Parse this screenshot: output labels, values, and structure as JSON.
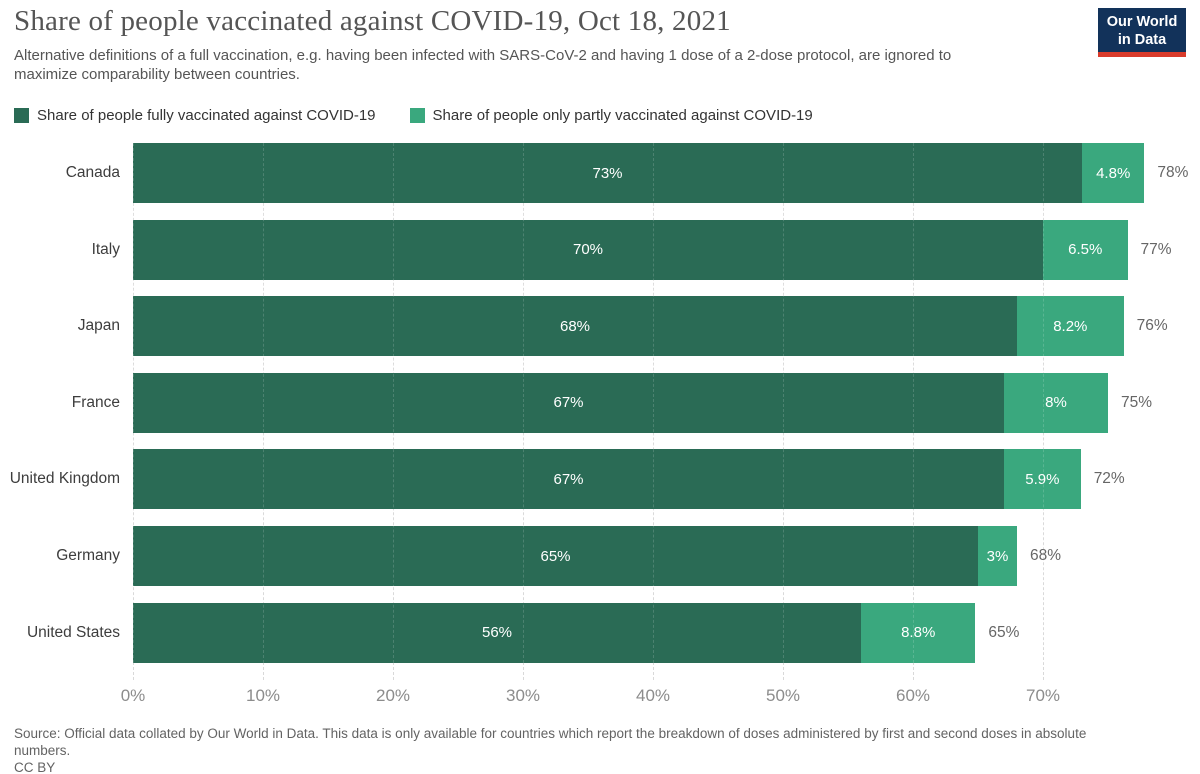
{
  "header": {
    "title": "Share of people vaccinated against COVID-19, Oct 18, 2021",
    "subtitle": "Alternative definitions of a full vaccination, e.g. having been infected with SARS-CoV-2 and having 1 dose of a 2-dose protocol, are ignored to maximize comparability between countries.",
    "logo": {
      "line1": "Our World",
      "line2": "in Data",
      "bg_color": "#12325a",
      "accent_color": "#d93b2b"
    }
  },
  "legend": [
    {
      "label": "Share of people fully vaccinated against COVID-19",
      "color": "#2a6b55"
    },
    {
      "label": "Share of people only partly vaccinated against COVID-19",
      "color": "#3aa87e"
    }
  ],
  "chart_data": {
    "type": "bar",
    "orientation": "horizontal",
    "stacked": true,
    "grid": true,
    "categories": [
      "Canada",
      "Italy",
      "Japan",
      "France",
      "United Kingdom",
      "Germany",
      "United States"
    ],
    "series": [
      {
        "name": "Share of people fully vaccinated against COVID-19",
        "color": "#2a6b55",
        "values": [
          73,
          70,
          68,
          67,
          67,
          65,
          56
        ],
        "labels": [
          "73%",
          "70%",
          "68%",
          "67%",
          "67%",
          "65%",
          "56%"
        ]
      },
      {
        "name": "Share of people only partly vaccinated against COVID-19",
        "color": "#3aa87e",
        "values": [
          4.8,
          6.5,
          8.2,
          8,
          5.9,
          3,
          8.8
        ],
        "labels": [
          "4.8%",
          "6.5%",
          "8.2%",
          "8%",
          "5.9%",
          "3%",
          "8.8%"
        ]
      }
    ],
    "totals": [
      "78%",
      "77%",
      "76%",
      "75%",
      "72%",
      "68%",
      "65%"
    ],
    "x_ticks": [
      "0%",
      "10%",
      "20%",
      "30%",
      "40%",
      "50%",
      "60%",
      "70%"
    ],
    "xlim": [
      0,
      80
    ],
    "xlabel": "",
    "ylabel": ""
  },
  "footer": {
    "source": "Source: Official data collated by Our World in Data. This data is only available for countries which report the breakdown of doses administered by first and second doses in absolute numbers.",
    "license": "CC BY"
  }
}
